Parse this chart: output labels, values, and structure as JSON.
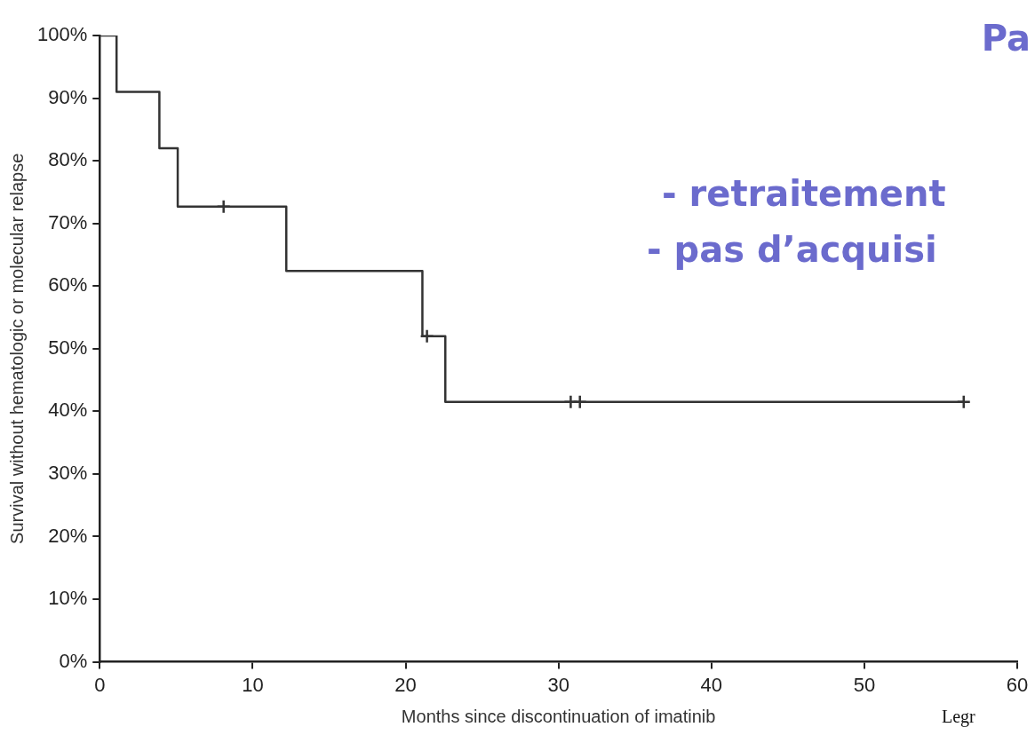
{
  "chart_data": {
    "type": "step",
    "xlabel": "Months since discontinuation of imatinib",
    "ylabel": "Survival without hematologic or molecular relapse",
    "series": [
      {
        "type": "step",
        "color": "#333333",
        "marker": "none",
        "x": [
          0,
          1.1,
          3.9,
          5.1,
          12.2,
          21.1,
          22.6,
          56.5
        ],
        "values": [
          100,
          91,
          82,
          72.7,
          62.4,
          52,
          41.5,
          41.5
        ]
      },
      {
        "type": "scatter",
        "color": "#333333",
        "marker": "cross",
        "x": [
          8.1,
          21.4,
          30.8,
          31.4,
          56.5
        ],
        "values": [
          72.7,
          52,
          41.5,
          41.5,
          41.5
        ]
      }
    ],
    "xlim": [
      0,
      60
    ],
    "xticks": [
      0,
      10,
      20,
      30,
      40,
      50,
      60
    ],
    "ylim": [
      0,
      100
    ],
    "yticks": [
      {
        "value": 0,
        "label": "0%"
      },
      {
        "value": 10,
        "label": "10%"
      },
      {
        "value": 20,
        "label": "20%"
      },
      {
        "value": 30,
        "label": "30%"
      },
      {
        "value": 40,
        "label": "40%"
      },
      {
        "value": 50,
        "label": "50%"
      },
      {
        "value": 60,
        "label": "60%"
      },
      {
        "value": 70,
        "label": "70%"
      },
      {
        "value": 80,
        "label": "80%"
      },
      {
        "value": 90,
        "label": "90%"
      },
      {
        "value": 100,
        "label": "100%"
      }
    ],
    "grid": false,
    "legend": false,
    "annotations": [
      "Pa",
      "- retraitement",
      "- pas d’acquisi",
      "Legr"
    ]
  }
}
